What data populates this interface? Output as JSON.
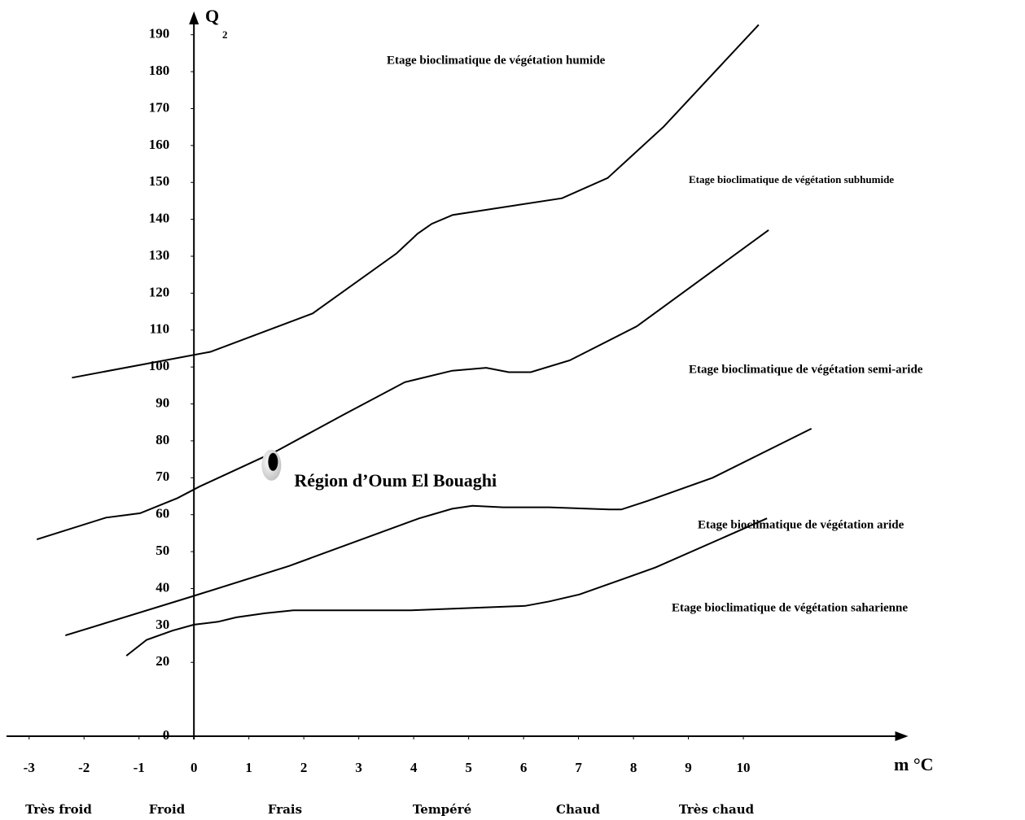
{
  "chart_data": {
    "type": "line",
    "y_label": "Q",
    "y_label_sub": "2",
    "x_label": "m °C",
    "xlim": [
      -3.5,
      13
    ],
    "xticks": [
      -3,
      -2,
      -1,
      0,
      1,
      2,
      3,
      4,
      5,
      6,
      7,
      8,
      9,
      10
    ],
    "ylim": [
      0,
      195
    ],
    "yticks": [
      0,
      20,
      30,
      40,
      50,
      60,
      70,
      80,
      90,
      100,
      110,
      120,
      130,
      140,
      150,
      160,
      170,
      180,
      190
    ],
    "color": "#000000",
    "series": [
      {
        "x": [
          -2.22,
          0.3,
          2.16,
          3.69,
          4.07,
          4.33,
          4.71,
          6.7,
          7.53,
          8.55,
          10.28
        ],
        "values": [
          97.1,
          104.1,
          114.5,
          130.8,
          136.1,
          138.8,
          141.2,
          145.7,
          151.2,
          165.1,
          192.7
        ]
      },
      {
        "x": [
          -2.86,
          -1.6,
          -0.98,
          -0.3,
          0.1,
          1.51,
          2.7,
          3.84,
          4.7,
          5.32,
          5.73,
          6.13,
          6.84,
          8.06,
          10.46
        ],
        "values": [
          53.3,
          59.2,
          60.4,
          64.5,
          67.6,
          77.3,
          86.9,
          95.9,
          99.0,
          99.8,
          98.6,
          98.6,
          101.8,
          111.0,
          137.1
        ]
      },
      {
        "x": [
          -2.34,
          0,
          1.73,
          4.1,
          4.7,
          5.07,
          5.63,
          6.47,
          7.56,
          7.78,
          8.25,
          9.44,
          11.24
        ],
        "values": [
          27.3,
          38.0,
          46.1,
          59.0,
          61.6,
          62.4,
          62.0,
          62.0,
          61.4,
          61.4,
          63.7,
          70.0,
          83.3
        ]
      },
      {
        "x": [
          -1.23,
          -0.86,
          -0.39,
          0,
          0.44,
          0.77,
          1.29,
          1.81,
          3.96,
          6.03,
          6.47,
          7.02,
          8.4,
          10.43
        ],
        "values": [
          21.8,
          26.1,
          28.6,
          30.2,
          31.0,
          32.2,
          33.3,
          34.1,
          34.1,
          35.3,
          36.5,
          38.4,
          45.7,
          59.0
        ]
      }
    ],
    "points": [
      {
        "label": "Région d’Oum El Bouaghi",
        "x": 1.44,
        "y": 74.3
      }
    ],
    "annotations": [
      "Etage bioclimatique de végétation humide",
      "Etage bioclimatique de végétation subhumide",
      "Etage bioclimatique de végétation semi-aride",
      "Etage bioclimatique de végétation aride",
      "Etage bioclimatique de végétation saharienne"
    ],
    "zones": [
      "Très froid",
      "Froid",
      "Frais",
      "Tempéré",
      "Chaud",
      "Très chaud"
    ]
  }
}
